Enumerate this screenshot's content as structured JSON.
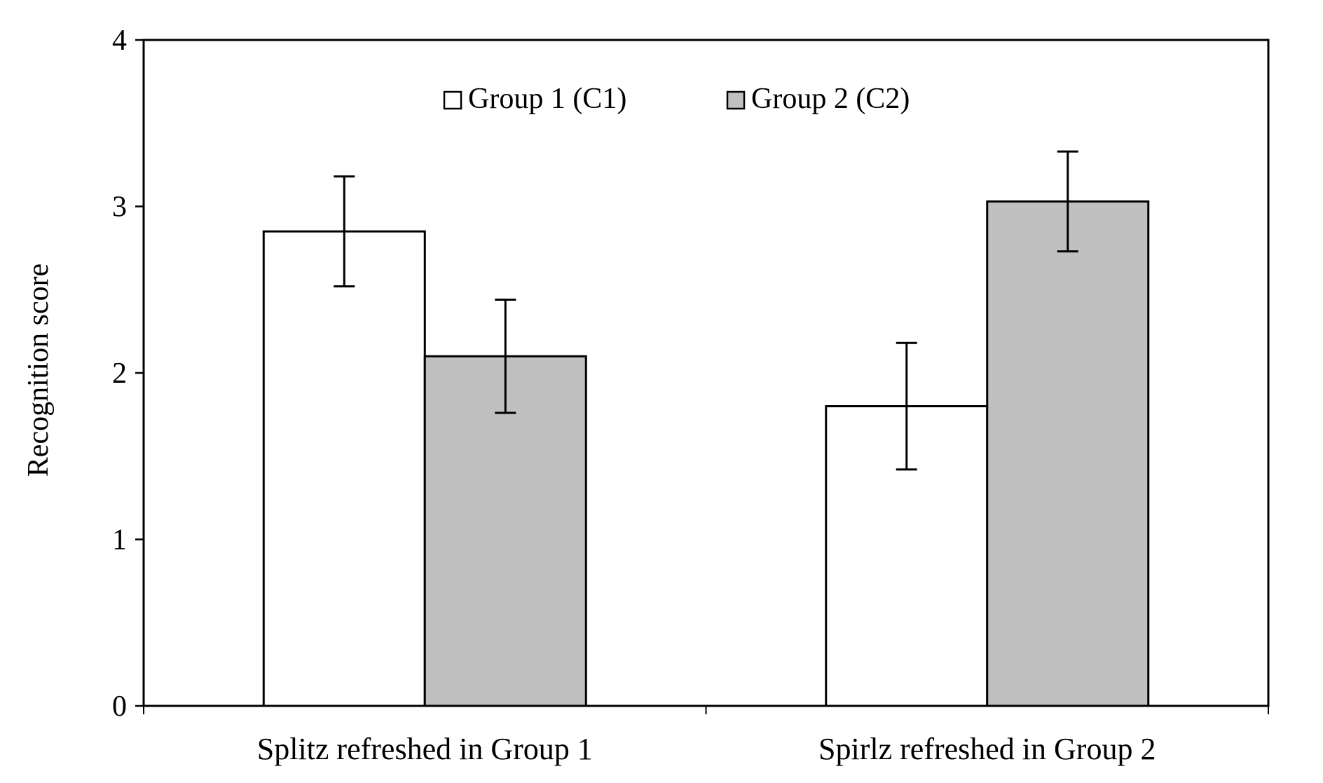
{
  "chart_data": {
    "type": "bar",
    "title": "",
    "xlabel": "",
    "ylabel": "Recognition score",
    "ylim": [
      0,
      4
    ],
    "yticks": [
      "0",
      "1",
      "2",
      "3",
      "4"
    ],
    "categories": [
      "Splitz refreshed in Group 1",
      "Spirlz refreshed in Group 2"
    ],
    "series": [
      {
        "name": "Group 1 (C1)",
        "color": "#ffffff",
        "values": [
          2.85,
          1.8
        ],
        "error_low": [
          2.52,
          1.42
        ],
        "error_high": [
          3.18,
          2.18
        ]
      },
      {
        "name": "Group 2 (C2)",
        "color": "#c0c0c0",
        "values": [
          2.1,
          3.03
        ],
        "error_low": [
          1.76,
          2.73
        ],
        "error_high": [
          2.44,
          3.33
        ]
      }
    ],
    "grid": false,
    "legend_position": "top-center"
  }
}
